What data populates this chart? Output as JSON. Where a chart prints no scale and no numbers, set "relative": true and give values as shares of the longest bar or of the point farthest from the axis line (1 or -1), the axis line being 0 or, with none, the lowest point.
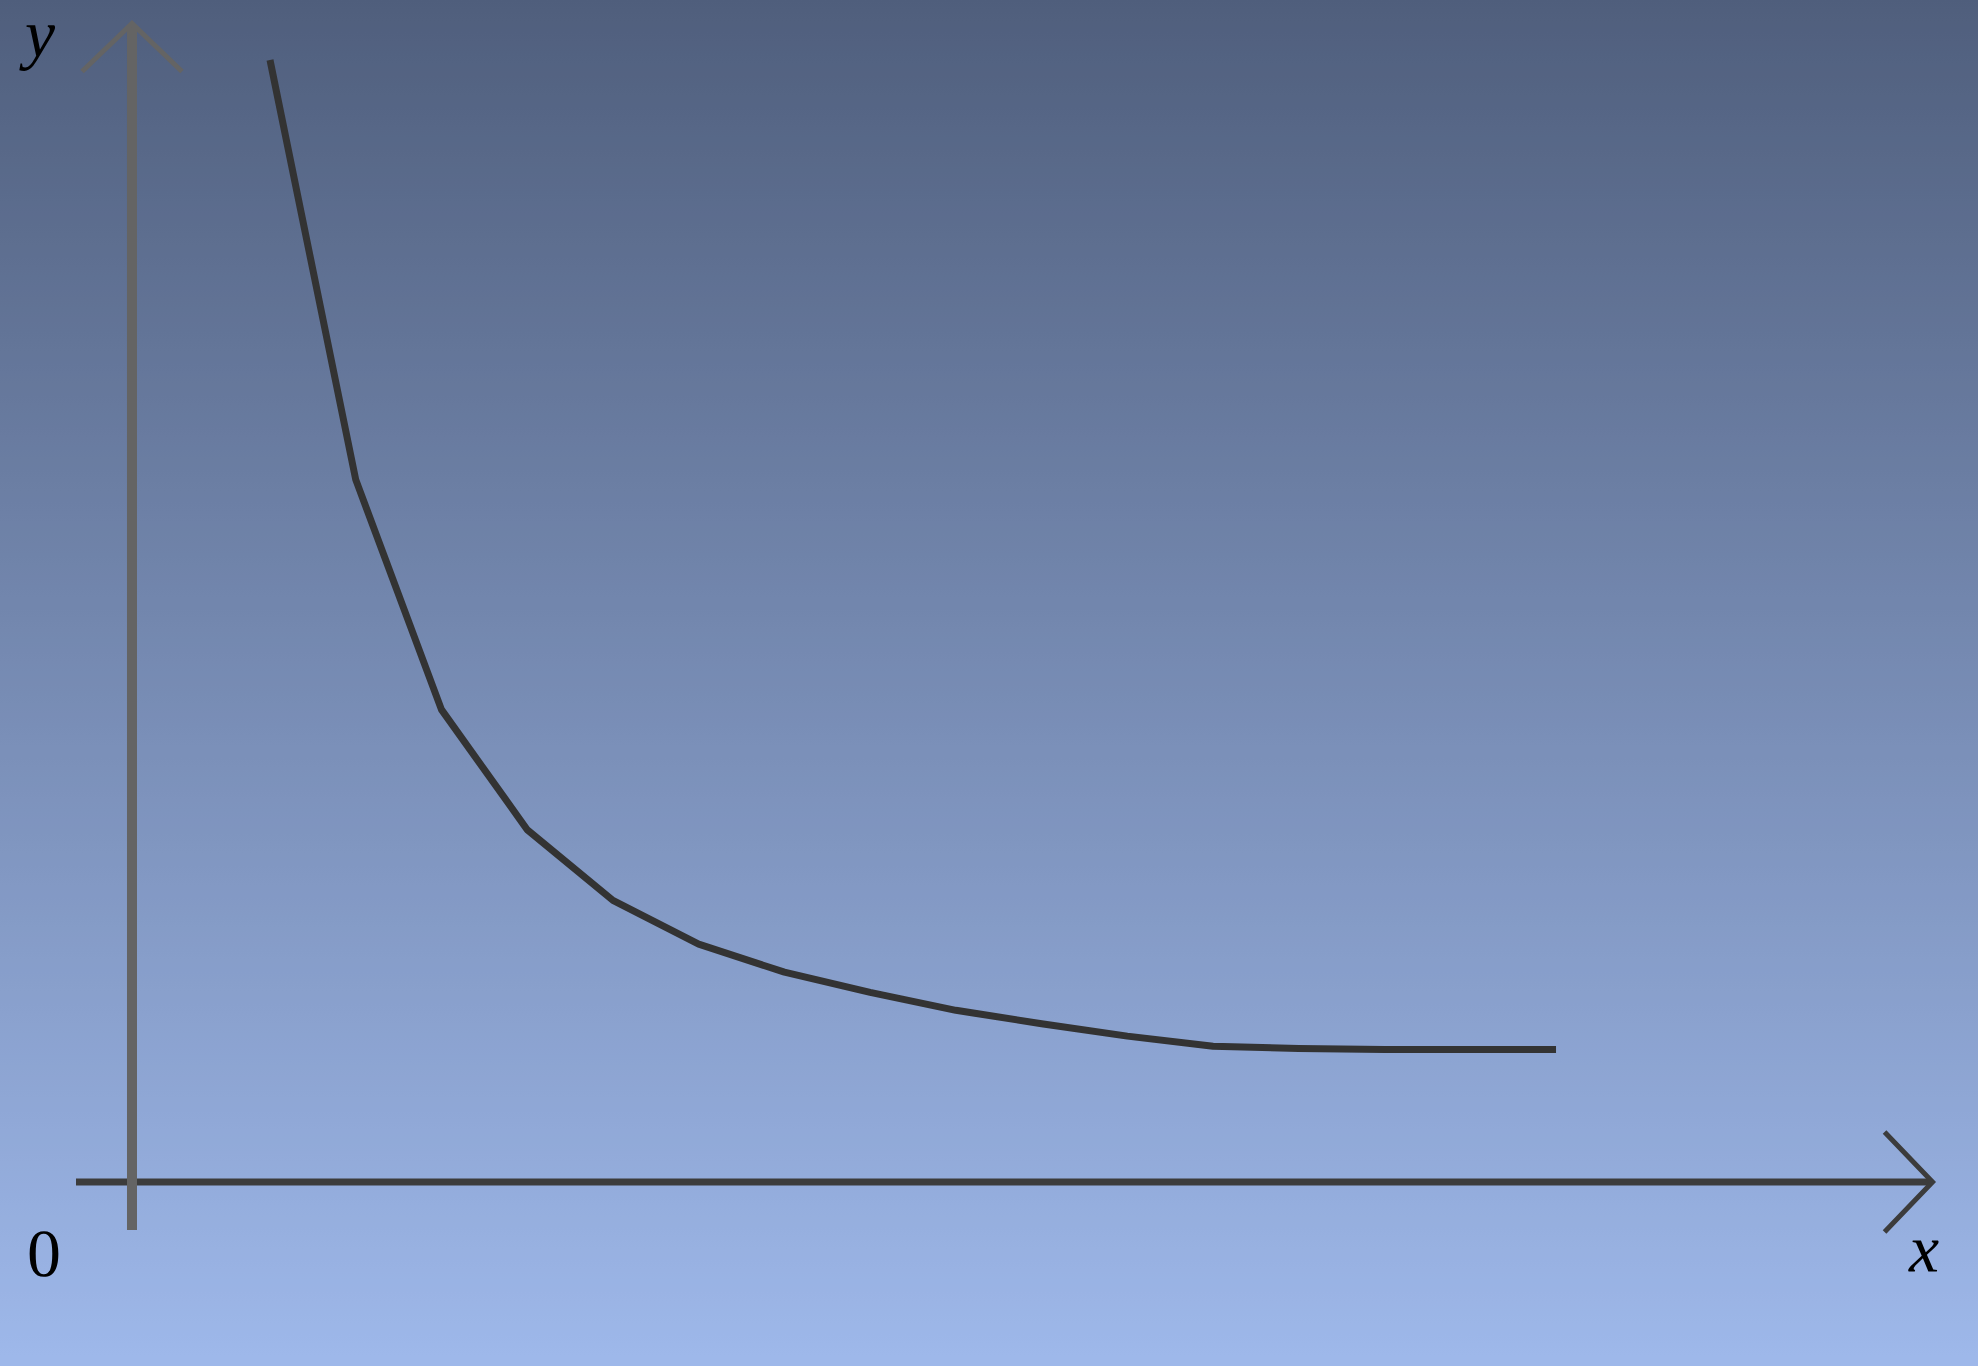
{
  "chart_data": {
    "type": "line",
    "relative": true,
    "xlabel": "x",
    "ylabel": "y",
    "annotations": [
      "0"
    ],
    "color": "#333333",
    "line_style": "solid",
    "marker": "none",
    "categories": [
      null,
      null,
      null,
      null,
      null,
      null,
      null,
      null,
      null,
      null,
      null,
      null,
      null,
      null,
      null,
      null
    ],
    "values": [
      1.0,
      0.626,
      0.421,
      0.314,
      0.251,
      0.212,
      0.187,
      0.169,
      0.153,
      0.141,
      0.13,
      0.121,
      0.119,
      0.118,
      0.118,
      0.118
    ]
  }
}
